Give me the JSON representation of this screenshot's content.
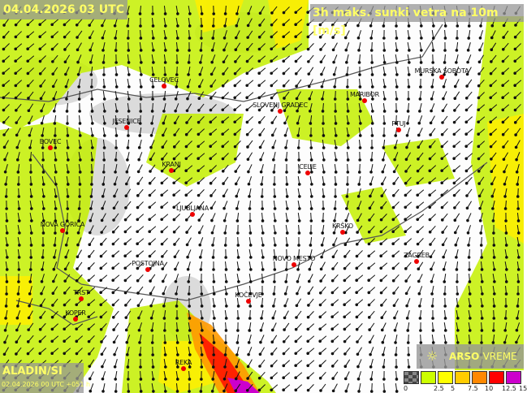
{
  "header": {
    "valid_time": "04.04.2026 03 UTC",
    "variable": "3h maks. sunki vetra na 10m [m/s]"
  },
  "model": {
    "name": "ALADIN/SI",
    "run": "02.04.2026 00 UTC +051 h"
  },
  "logo": {
    "brand": "ARSO",
    "product": "VREME"
  },
  "legend": {
    "labels": [
      "0",
      "2.5",
      "5",
      "7.5",
      "10",
      "12.5",
      "15"
    ],
    "colors": [
      "#555555",
      "#ccff00",
      "#ffff00",
      "#ffcc00",
      "#ff8800",
      "#ff0000",
      "#cc00cc"
    ]
  },
  "cities": [
    "CELOVEC",
    "SLOVENJ GRADEC",
    "MARIBOR",
    "MURSKA SOBOTA",
    "JESENICE",
    "BOVEC",
    "PTUJ",
    "KRANJ",
    "CELJE",
    "LJUBLJANA",
    "NOVA GORICA",
    "KRŠKO",
    "ZAGREB",
    "POSTOJNA",
    "NOVO MESTO",
    "TRST",
    "KOPER",
    "KOČEVJE",
    "REKA"
  ],
  "colors": {
    "city_marker": "#ee0000",
    "title_text": "#ffff66"
  }
}
